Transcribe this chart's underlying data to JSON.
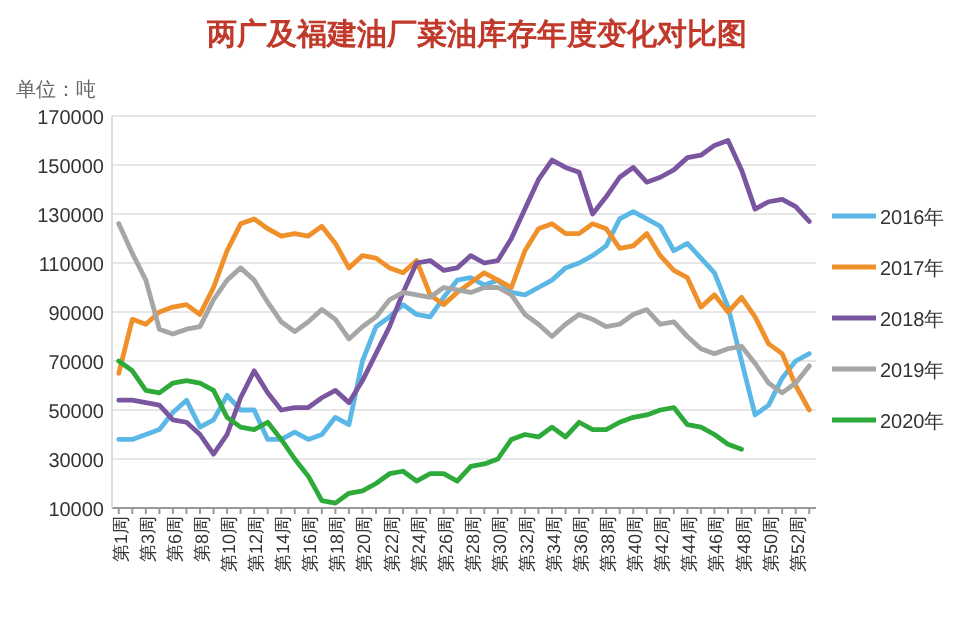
{
  "chart_data": {
    "type": "line",
    "title": "两广及福建油厂菜油库存年度变化对比图",
    "annotations": [
      "单位：吨"
    ],
    "categories": [
      "第1周",
      null,
      "第3周",
      null,
      "第6周",
      null,
      "第8周",
      null,
      "第10周",
      null,
      "第12周",
      null,
      "第14周",
      null,
      "第16周",
      null,
      "第18周",
      null,
      "第20周",
      null,
      "第22周",
      null,
      "第24周",
      null,
      "第26周",
      null,
      "第28周",
      null,
      "第30周",
      null,
      "第32周",
      null,
      "第34周",
      null,
      "第36周",
      null,
      "第38周",
      null,
      "第40周",
      null,
      "第42周",
      null,
      "第44周",
      null,
      "第46周",
      null,
      "第48周",
      null,
      "第50周",
      null,
      "第52周",
      null
    ],
    "series": [
      {
        "name": "2016年",
        "color": "#5bb8e6",
        "values": [
          38000,
          38000,
          40000,
          42000,
          49000,
          54000,
          43000,
          46000,
          56000,
          50000,
          50000,
          38000,
          38000,
          41000,
          38000,
          40000,
          47000,
          44000,
          70000,
          84000,
          88000,
          93000,
          89000,
          88000,
          96000,
          103000,
          104000,
          101000,
          103000,
          98000,
          97000,
          100000,
          103000,
          108000,
          110000,
          113000,
          117000,
          128000,
          131000,
          128000,
          125000,
          115000,
          118000,
          112000,
          106000,
          92000,
          70000,
          48000,
          52000,
          63000,
          70000,
          73000
        ]
      },
      {
        "name": "2017年",
        "color": "#f0902a",
        "values": [
          65000,
          87000,
          85000,
          90000,
          92000,
          93000,
          89000,
          100000,
          115000,
          126000,
          128000,
          124000,
          121000,
          122000,
          121000,
          125000,
          118000,
          108000,
          113000,
          112000,
          108000,
          106000,
          111000,
          97000,
          93000,
          98000,
          102000,
          106000,
          103000,
          100000,
          115000,
          124000,
          126000,
          122000,
          122000,
          126000,
          124000,
          116000,
          117000,
          122000,
          113000,
          107000,
          104000,
          92000,
          97000,
          90000,
          96000,
          88000,
          77000,
          73000,
          60000,
          50000
        ]
      },
      {
        "name": "2018年",
        "color": "#7a55a0",
        "values": [
          54000,
          54000,
          53000,
          52000,
          46000,
          45000,
          40000,
          32000,
          40000,
          55000,
          66000,
          57000,
          50000,
          51000,
          51000,
          55000,
          58000,
          53000,
          62000,
          73000,
          84000,
          98000,
          110000,
          111000,
          107000,
          108000,
          113000,
          110000,
          111000,
          120000,
          132000,
          144000,
          152000,
          149000,
          147000,
          130000,
          137000,
          145000,
          149000,
          143000,
          145000,
          148000,
          153000,
          154000,
          158000,
          160000,
          148000,
          132000,
          135000,
          136000,
          133000,
          127000
        ]
      },
      {
        "name": "2019年",
        "color": "#a6a6a6",
        "values": [
          126000,
          114000,
          103000,
          83000,
          81000,
          83000,
          84000,
          95000,
          103000,
          108000,
          103000,
          94000,
          86000,
          82000,
          86000,
          91000,
          87000,
          79000,
          84000,
          88000,
          95000,
          98000,
          97000,
          96000,
          100000,
          99000,
          98000,
          100000,
          100000,
          97000,
          89000,
          85000,
          80000,
          85000,
          89000,
          87000,
          84000,
          85000,
          89000,
          91000,
          85000,
          86000,
          80000,
          75000,
          73000,
          75000,
          76000,
          69000,
          61000,
          57000,
          61000,
          68000
        ]
      },
      {
        "name": "2020年",
        "color": "#2eaa3a",
        "values": [
          70000,
          66000,
          58000,
          57000,
          61000,
          62000,
          61000,
          58000,
          47000,
          43000,
          42000,
          45000,
          38000,
          30000,
          23000,
          13000,
          12000,
          16000,
          17000,
          20000,
          24000,
          25000,
          21000,
          24000,
          24000,
          21000,
          27000,
          28000,
          30000,
          38000,
          40000,
          39000,
          43000,
          39000,
          45000,
          42000,
          42000,
          45000,
          47000,
          48000,
          50000,
          51000,
          44000,
          43000,
          40000,
          36000,
          34000,
          null,
          null,
          null,
          null,
          null
        ]
      }
    ],
    "ylim": [
      10000,
      170000
    ],
    "yticks": [
      10000,
      30000,
      50000,
      70000,
      90000,
      110000,
      130000,
      150000,
      170000
    ],
    "grid": "y",
    "legend": "right",
    "marker": "none",
    "line_style": "solid"
  }
}
